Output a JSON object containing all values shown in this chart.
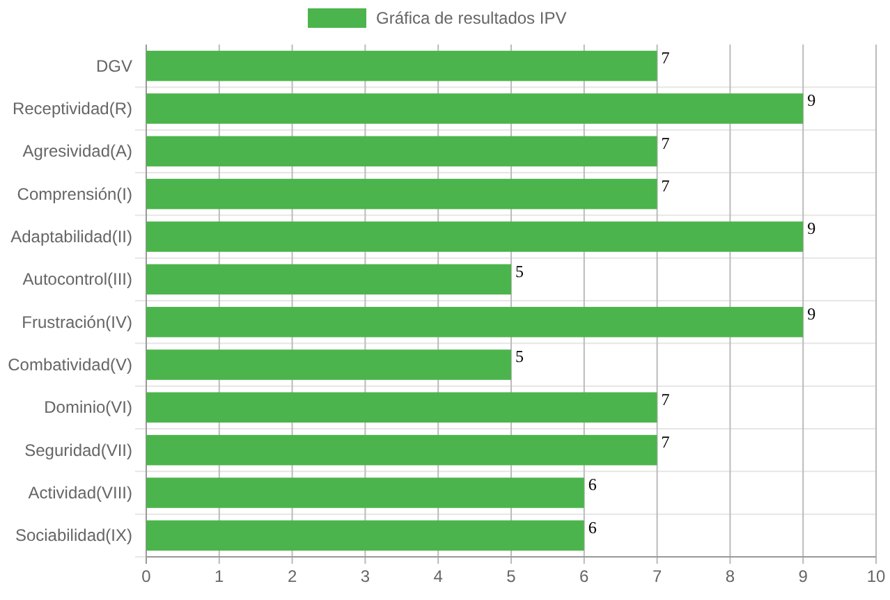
{
  "chart_data": {
    "type": "bar",
    "orientation": "horizontal",
    "categories": [
      "DGV",
      "Receptividad(R)",
      "Agresividad(A)",
      "Comprensión(I)",
      "Adaptabilidad(II)",
      "Autocontrol(III)",
      "Frustración(IV)",
      "Combatividad(V)",
      "Dominio(VI)",
      "Seguridad(VII)",
      "Actividad(VIII)",
      "Sociabilidad(IX)"
    ],
    "series": [
      {
        "name": "Gráfica de resultados IPV",
        "color": "#4cb44c",
        "values": [
          7,
          9,
          7,
          7,
          9,
          5,
          9,
          5,
          7,
          7,
          6,
          6
        ]
      }
    ],
    "xlim": [
      0,
      10
    ],
    "xticks": [
      0,
      1,
      2,
      3,
      4,
      5,
      6,
      7,
      8,
      9,
      10
    ],
    "grid": true,
    "legend": "top",
    "data_labels": true
  }
}
